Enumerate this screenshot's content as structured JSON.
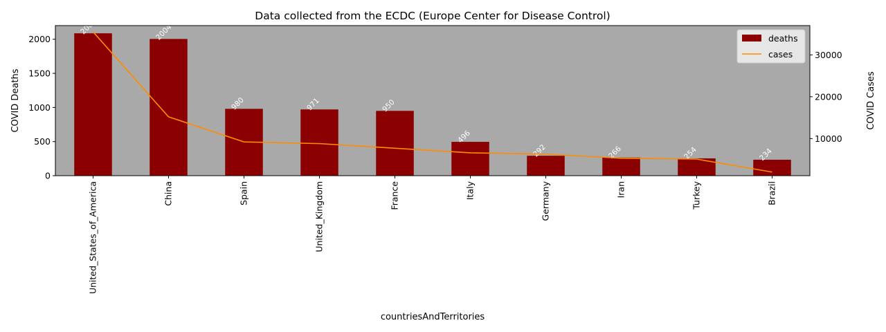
{
  "chart_data": {
    "type": "bar",
    "title": "Data collected from the ECDC (Europe Center for Disease Control)",
    "xlabel": "countriesAndTerritories",
    "ylabel": "COVID Deaths",
    "ylabel_right": "COVID Cases",
    "categories": [
      "United_States_of_America",
      "China",
      "Spain",
      "United_Kingdom",
      "France",
      "Italy",
      "Germany",
      "Iran",
      "Turkey",
      "Brazil"
    ],
    "series": [
      {
        "name": "deaths",
        "type": "bar",
        "axis": "left",
        "color": "#8b0000",
        "values": [
          2087,
          2004,
          980,
          971,
          950,
          496,
          292,
          266,
          254,
          234
        ]
      },
      {
        "name": "cases",
        "type": "line",
        "axis": "right",
        "color": "#ff8c00",
        "values": [
          35500,
          15200,
          9200,
          8800,
          7700,
          6600,
          6300,
          5300,
          5100,
          2000
        ]
      }
    ],
    "data_labels": [
      "2087",
      "2004",
      "980",
      "971",
      "950",
      "496",
      "292",
      "266",
      "254",
      "234"
    ],
    "ylim": [
      0,
      2200
    ],
    "ylim_right": [
      1133,
      37000
    ],
    "yticks": [
      0,
      500,
      1000,
      1500,
      2000
    ],
    "yticks_right": [
      10000,
      20000,
      30000
    ],
    "legend_position": "top-right",
    "plot_background": "#a9a9a9",
    "grid": false
  }
}
